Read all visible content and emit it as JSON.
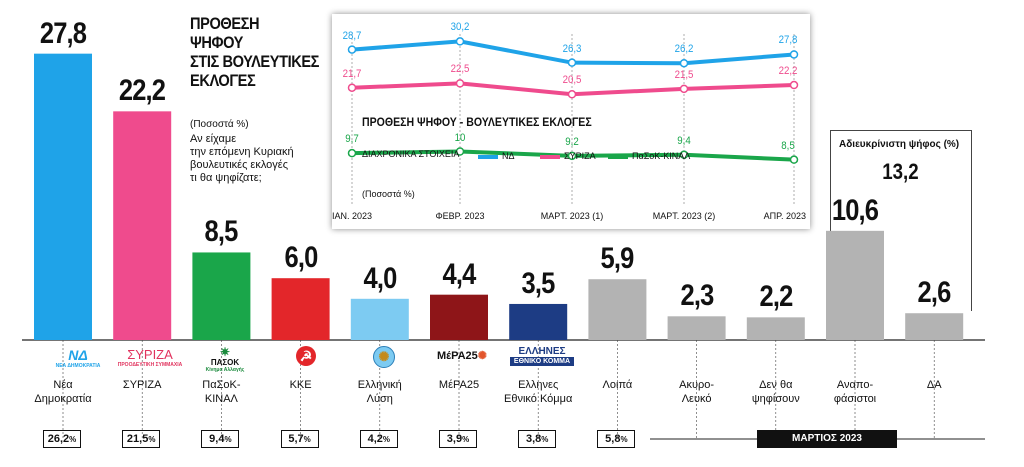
{
  "title_lines": [
    "ΠΡΟΘΕΣΗ",
    "ΨΗΦΟΥ",
    "ΣΤΙΣ ΒΟΥΛΕΥΤΙΚΕΣ",
    "ΕΚΛΟΓΕΣ"
  ],
  "percent_note": "(Ποσοστά %)",
  "question_lines": [
    "Αν είχαμε",
    "την επόμενη Κυριακή",
    "βουλευτικές εκλογές",
    "τι θα ψηφίζατε;"
  ],
  "month_label": "ΜΑΡΤΙΟΣ 2023",
  "undecided_label": "Αδιευκρίνιστη ψήφος (%)",
  "undecided_total": "13,2",
  "logos": {
    "nd_mark": "ΝΔ",
    "nd_sub": "ΝΕΑ ΔΗΜΟΚΡΑΤΙΑ",
    "syriza_mark": "ΣΥΡΙΖΑ",
    "syriza_sub": "ΠΡΟΟΔΕΥΤΙΚΗ ΣΥΜΜΑΧΙΑ",
    "pasok_mark": "ΠΑΣΟΚ",
    "pasok_sub": "Κίνημα Αλλαγής",
    "kke_mark": "☭",
    "el_mark": "✺",
    "mera_mark": "ΜέΡΑ25",
    "ek_mark_1": "ΕΛΛΗΝΕΣ",
    "ek_mark_2": "ΕΘΝΙΚΟ ΚΟΜΜΑ"
  },
  "colors": {
    "nd": "#1fa3e8",
    "syriza": "#ef4b8d",
    "pasok": "#1aa64a",
    "kke": "#e3262a",
    "elliniki_lysi": "#7dcbf2",
    "mera25": "#8e1518",
    "ethniko_komma": "#1d3c84",
    "other": "#b3b3b3"
  },
  "chart_data": [
    {
      "type": "bar",
      "title": "ΠΡΟΘΕΣΗ ΨΗΦΟΥ ΣΤΙΣ ΒΟΥΛΕΥΤΙΚΕΣ ΕΚΛΟΓΕΣ",
      "unit": "(Ποσοστά %)",
      "ylim": [
        0,
        30
      ],
      "grid": false,
      "categories": [
        "Νέα Δημοκρατία",
        "ΣΥΡΙΖΑ",
        "ΠαΣοΚ-ΚΙΝΑΛ",
        "ΚΚΕ",
        "Ελληνική Λύση",
        "ΜέΡΑ25",
        "Ελληνες Εθνικό Κόμμα",
        "Λοιπά",
        "Ακυρο-Λευκό",
        "Δεν θα ψηφίσουν",
        "Αναποφάσιστοι",
        "ΔΑ"
      ],
      "labels": [
        [
          "Νέα",
          "Δημοκρατία"
        ],
        [
          "ΣΥΡΙΖΑ"
        ],
        [
          "ΠαΣοΚ-",
          "ΚΙΝΑΛ"
        ],
        [
          "ΚΚΕ"
        ],
        [
          "Ελληνική",
          "Λύση"
        ],
        [
          "ΜέΡΑ25"
        ],
        [
          "Ελληνες",
          "Εθνικό Κόμμα"
        ],
        [
          "Λοιπά"
        ],
        [
          "Ακυρο-",
          "Λευκό"
        ],
        [
          "Δεν θα",
          "ψηφίσουν"
        ],
        [
          "Αναπο-",
          "φάσιστοι"
        ],
        [
          "ΔΑ"
        ]
      ],
      "values": [
        27.8,
        22.2,
        8.5,
        6.0,
        4.0,
        4.4,
        3.5,
        5.9,
        2.3,
        2.2,
        10.6,
        2.6
      ],
      "value_labels": [
        "27,8",
        "22,2",
        "8,5",
        "6,0",
        "4,0",
        "4,4",
        "3,5",
        "5,9",
        "2,3",
        "2,2",
        "10,6",
        "2,6"
      ],
      "previous_election": [
        "26,2",
        "21,5",
        "9,4",
        "5,7",
        "4,2",
        "3,9",
        "3,8",
        "5,8"
      ],
      "previous_suffix": "%"
    },
    {
      "type": "line",
      "title": "ΠΡΟΘΕΣΗ ΨΗΦΟΥ - ΒΟΥΛΕΥΤΙΚΕΣ ΕΚΛΟΓΕΣ",
      "subtitle": "ΔΙΑΧΡΟΝΙΚΑ ΣΤΟΙΧΕΙΑ",
      "unit": "(Ποσοστά %)",
      "x": [
        "ΙΑΝ. 2023",
        "ΦΕΒΡ. 2023",
        "ΜΑΡΤ. 2023 (1)",
        "ΜΑΡΤ. 2023 (2)",
        "ΑΠΡ. 2023"
      ],
      "ylim": [
        0,
        35
      ],
      "legend_position": "middle",
      "series": [
        {
          "name": "ΝΔ",
          "values": [
            28.7,
            30.2,
            26.3,
            26.2,
            27.8
          ],
          "labels": [
            "28,7",
            "30,2",
            "26,3",
            "26,2",
            "27,8"
          ]
        },
        {
          "name": "ΣΥΡΙΖΑ",
          "values": [
            21.7,
            22.5,
            20.5,
            21.5,
            22.2
          ],
          "labels": [
            "21,7",
            "22,5",
            "20,5",
            "21,5",
            "22,2"
          ]
        },
        {
          "name": "ΠαΣοΚ-ΚΙΝΑΛ",
          "values": [
            9.7,
            10,
            9.2,
            9.4,
            8.5
          ],
          "labels": [
            "9,7",
            "10",
            "9,2",
            "9,4",
            "8,5"
          ]
        }
      ]
    }
  ]
}
